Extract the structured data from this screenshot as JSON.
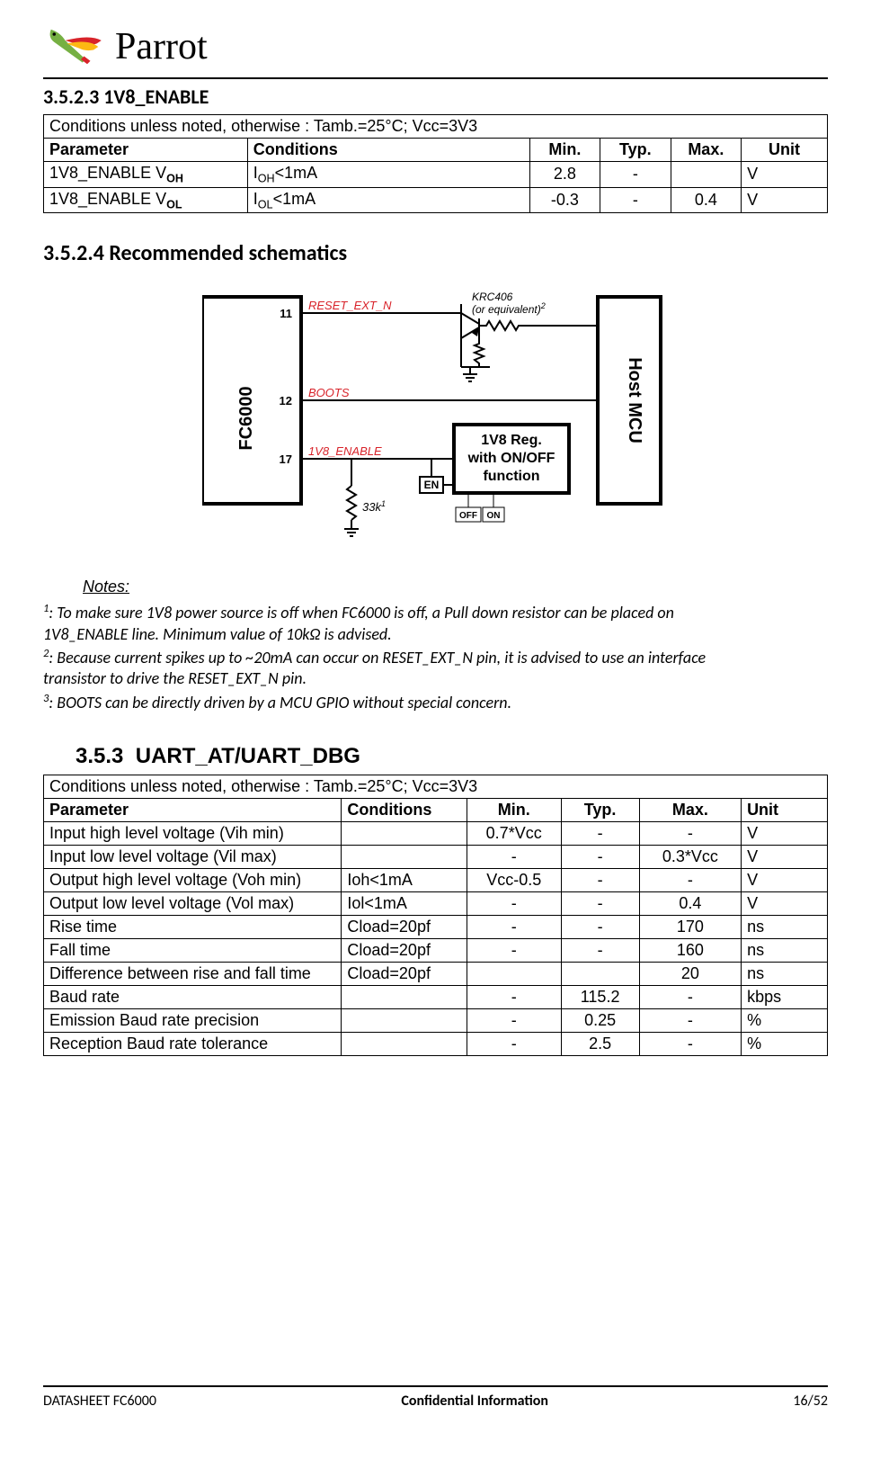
{
  "brand": "Parrot",
  "logo_colors": {
    "green": "#76b043",
    "red": "#d8232a",
    "yellow": "#fdb813",
    "black": "#000",
    "white": "#fff"
  },
  "sec1": {
    "num": "3.5.2.3",
    "title": "1V8_ENABLE",
    "caption": "Conditions unless noted, otherwise : Tamb.=25°C; Vcc=3V3",
    "headers": [
      "Parameter",
      "Conditions",
      "Min.",
      "Typ.",
      "Max.",
      "Unit"
    ],
    "col_widths": [
      "26%",
      "36%",
      "9%",
      "9%",
      "9%",
      "11%"
    ],
    "rows": [
      {
        "param": "1V8_ENABLE V",
        "param_sub": "OH",
        "cond": "I",
        "cond_sub": "OH",
        "cond_tail": "<1mA",
        "min": "2.8",
        "typ": "-",
        "max": "",
        "unit": "V"
      },
      {
        "param": "1V8_ENABLE V",
        "param_sub": "OL",
        "cond": "I",
        "cond_sub": "OL",
        "cond_tail": "<1mA",
        "min": "-0.3",
        "typ": "-",
        "max": "0.4",
        "unit": "V"
      }
    ]
  },
  "sec2": {
    "num": "3.5.2.4",
    "title": "Recommended schematics"
  },
  "schematic": {
    "labels": {
      "chip": "FC6000",
      "host": "Host MCU",
      "pins": {
        "p11": "11",
        "p12": "12",
        "p17": "17"
      },
      "reset": "RESET_EXT_N",
      "boots": "BOOTS",
      "enable": "1V8_ENABLE",
      "transistor": "KRC406",
      "transistor_note": "(or equivalent)",
      "reg_l1": "1V8 Reg.",
      "reg_l2": "with ON/OFF",
      "reg_l3": "function",
      "en": "EN",
      "off": "OFF",
      "on": "ON",
      "r33k": "33k",
      "sup1": "1",
      "sup2": "2"
    },
    "colors": {
      "red": "#d8232a",
      "black": "#000"
    }
  },
  "notes": {
    "heading": "Notes:",
    "n1a": ": To make sure 1V8 power source is off when FC6000 is off, a Pull down resistor can be placed on",
    "n1b": "1V8_ENABLE line. Minimum value of 10kΩ is advised.",
    "n2a": ": Because current spikes up to ~20mA can occur on RESET_EXT_N pin, it is advised to use an interface",
    "n2b": "transistor to drive the RESET_EXT_N pin.",
    "n3": ": BOOTS can be directly driven by a MCU GPIO without special concern."
  },
  "sec3": {
    "num": "3.5.3",
    "title": "UART_AT/UART_DBG",
    "caption": "Conditions unless noted, otherwise : Tamb.=25°C; Vcc=3V3",
    "headers": [
      "Parameter",
      "Conditions",
      "Min.",
      "Typ.",
      "Max.",
      "Unit"
    ],
    "col_widths": [
      "38%",
      "16%",
      "12%",
      "10%",
      "13%",
      "11%"
    ],
    "rows": [
      [
        "Input high level voltage (Vih min)",
        "",
        "0.7*Vcc",
        "-",
        "-",
        "V"
      ],
      [
        "Input low level voltage (Vil max)",
        "",
        "-",
        "-",
        "0.3*Vcc",
        "V"
      ],
      [
        "Output high level voltage (Voh min)",
        "Ioh<1mA",
        "Vcc-0.5",
        "-",
        "-",
        "V"
      ],
      [
        "Output low level voltage (Vol max)",
        "Iol<1mA",
        "-",
        "-",
        "0.4",
        "V"
      ],
      [
        "Rise time",
        "Cload=20pf",
        "-",
        "-",
        "170",
        "ns"
      ],
      [
        "Fall time",
        "Cload=20pf",
        "-",
        "-",
        "160",
        "ns"
      ],
      [
        "Difference between rise and fall time",
        "Cload=20pf",
        "",
        "",
        "20",
        "ns"
      ],
      [
        "Baud rate",
        "",
        "-",
        "115.2",
        "-",
        "kbps"
      ],
      [
        "Emission Baud rate precision",
        "",
        "-",
        "0.25",
        "-",
        "%"
      ],
      [
        "Reception Baud rate tolerance",
        "",
        "-",
        "2.5",
        "-",
        "%"
      ]
    ]
  },
  "footer": {
    "left": "DATASHEET FC6000",
    "mid": "Confidential Information",
    "right": "16/52"
  }
}
